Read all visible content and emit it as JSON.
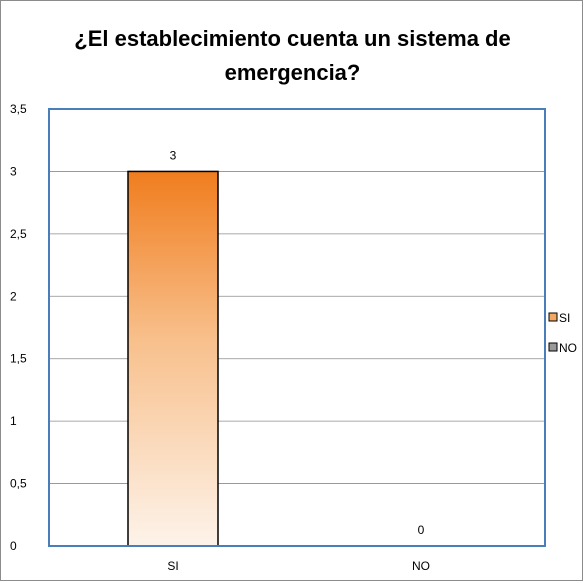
{
  "chart_data": {
    "type": "bar",
    "title": "¿El establecimiento cuenta un sistema de emergencia?",
    "title_lines": [
      "¿El establecimiento cuenta un sistema de",
      "emergencia?"
    ],
    "categories": [
      "SI",
      "NO"
    ],
    "values": [
      3,
      0
    ],
    "data_labels": [
      "3",
      "0"
    ],
    "ylim": [
      0,
      3.5
    ],
    "y_ticks": [
      "0",
      "0,5",
      "1",
      "1,5",
      "2",
      "2,5",
      "3",
      "3,5"
    ],
    "legend": {
      "placement": "right",
      "entries": [
        "SI",
        "NO"
      ]
    },
    "grid": true,
    "colors": {
      "bar_top": "#f07d1e",
      "bar_bottom": "#fdf3ea",
      "plot_border": "#4a7ebb",
      "grid": "#8c8c8c",
      "legend_si": "#f3a964",
      "legend_no": "#9a9a9a"
    }
  }
}
